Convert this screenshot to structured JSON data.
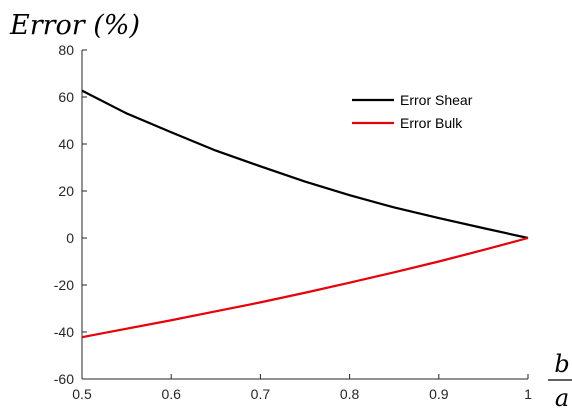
{
  "chart_data": {
    "type": "line",
    "ylabel": "Error (%)",
    "xlabel_numerator": "b",
    "xlabel_denominator": "a",
    "xlim": [
      0.5,
      1
    ],
    "ylim": [
      -60,
      80
    ],
    "x_ticks": [
      0.5,
      0.6,
      0.7,
      0.8,
      0.9,
      1
    ],
    "x_tick_labels": [
      "0.5",
      "0.6",
      "0.7",
      "0.8",
      "0.9",
      "1"
    ],
    "y_ticks": [
      -60,
      -40,
      -20,
      0,
      20,
      40,
      60,
      80
    ],
    "y_tick_labels": [
      "-60",
      "-40",
      "-20",
      "0",
      "20",
      "40",
      "60",
      "80"
    ],
    "grid": false,
    "legend_position": "top-right",
    "x": [
      0.5,
      0.55,
      0.6,
      0.65,
      0.7,
      0.75,
      0.8,
      0.85,
      0.9,
      0.95,
      1.0
    ],
    "series": [
      {
        "name": "Error Shear",
        "color": "#000000",
        "values": [
          62.7,
          53.0,
          45.0,
          37.2,
          30.5,
          24.0,
          18.2,
          13.0,
          8.5,
          4.2,
          0
        ]
      },
      {
        "name": "Error Bulk",
        "color": "#e8000b",
        "values": [
          -42.2,
          -38.6,
          -35.0,
          -31.2,
          -27.4,
          -23.3,
          -19.0,
          -14.6,
          -10.0,
          -5.1,
          0
        ]
      }
    ]
  }
}
